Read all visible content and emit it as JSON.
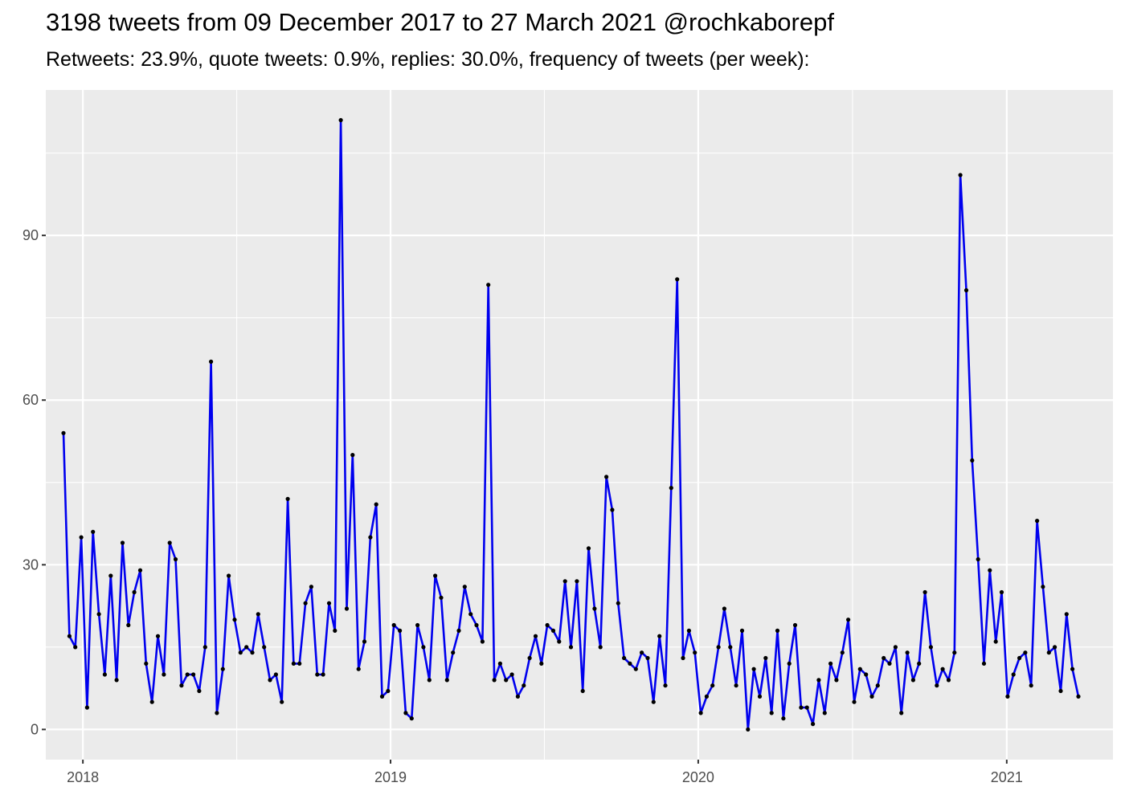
{
  "chart_data": {
    "type": "line",
    "title": "3198 tweets from 09 December 2017 to 27 March 2021 @rochkaborepf",
    "subtitle": "Retweets: 23.9%, quote tweets: 0.9%, replies: 30.0%, frequency of tweets (per week):",
    "xlabel": "",
    "ylabel": "",
    "x_axis": {
      "type": "date",
      "ticks": [
        "2018",
        "2019",
        "2020",
        "2021"
      ],
      "range": [
        "2017-11-18",
        "2021-05-07"
      ]
    },
    "y_axis": {
      "ticks": [
        0,
        30,
        60,
        90
      ],
      "range": [
        -5.5,
        116.5
      ]
    },
    "grid": true,
    "legend": "none",
    "colors": {
      "line": "#0000ee",
      "points": "#000000",
      "panel": "#ebebeb",
      "grid": "#ffffff"
    },
    "series": [
      {
        "x": [
          "2017-12-09",
          "2017-12-16",
          "2017-12-23",
          "2017-12-30",
          "2018-01-06",
          "2018-01-13",
          "2018-01-20",
          "2018-01-27",
          "2018-02-03",
          "2018-02-10",
          "2018-02-17",
          "2018-02-24",
          "2018-03-03",
          "2018-03-10",
          "2018-03-17",
          "2018-03-24",
          "2018-03-31",
          "2018-04-07",
          "2018-04-14",
          "2018-04-21",
          "2018-04-28",
          "2018-05-05",
          "2018-05-12",
          "2018-05-19",
          "2018-05-26",
          "2018-06-02",
          "2018-06-09",
          "2018-06-16",
          "2018-06-23",
          "2018-06-30",
          "2018-07-07",
          "2018-07-14",
          "2018-07-21",
          "2018-07-28",
          "2018-08-04",
          "2018-08-11",
          "2018-08-18",
          "2018-08-25",
          "2018-09-01",
          "2018-09-08",
          "2018-09-15",
          "2018-09-22",
          "2018-09-29",
          "2018-10-06",
          "2018-10-13",
          "2018-10-20",
          "2018-10-27",
          "2018-11-03",
          "2018-11-10",
          "2018-11-17",
          "2018-11-24",
          "2018-12-01",
          "2018-12-08",
          "2018-12-15",
          "2018-12-22",
          "2018-12-29",
          "2019-01-05",
          "2019-01-12",
          "2019-01-19",
          "2019-01-26",
          "2019-02-02",
          "2019-02-09",
          "2019-02-16",
          "2019-02-23",
          "2019-03-02",
          "2019-03-09",
          "2019-03-16",
          "2019-03-23",
          "2019-03-30",
          "2019-04-06",
          "2019-04-13",
          "2019-04-20",
          "2019-04-27",
          "2019-05-04",
          "2019-05-11",
          "2019-05-18",
          "2019-05-25",
          "2019-06-01",
          "2019-06-08",
          "2019-06-15",
          "2019-06-22",
          "2019-06-29",
          "2019-07-06",
          "2019-07-13",
          "2019-07-20",
          "2019-07-27",
          "2019-08-03",
          "2019-08-10",
          "2019-08-17",
          "2019-08-24",
          "2019-08-31",
          "2019-09-07",
          "2019-09-14",
          "2019-09-21",
          "2019-09-28",
          "2019-10-05",
          "2019-10-12",
          "2019-10-19",
          "2019-10-26",
          "2019-11-02",
          "2019-11-09",
          "2019-11-16",
          "2019-11-23",
          "2019-11-30",
          "2019-12-07",
          "2019-12-14",
          "2019-12-21",
          "2019-12-28",
          "2020-01-04",
          "2020-01-11",
          "2020-01-18",
          "2020-01-25",
          "2020-02-01",
          "2020-02-08",
          "2020-02-15",
          "2020-02-22",
          "2020-02-29",
          "2020-03-07",
          "2020-03-14",
          "2020-03-21",
          "2020-03-28",
          "2020-04-04",
          "2020-04-11",
          "2020-04-18",
          "2020-04-25",
          "2020-05-02",
          "2020-05-09",
          "2020-05-16",
          "2020-05-23",
          "2020-05-30",
          "2020-06-06",
          "2020-06-13",
          "2020-06-20",
          "2020-06-27",
          "2020-07-04",
          "2020-07-11",
          "2020-07-18",
          "2020-07-25",
          "2020-08-01",
          "2020-08-08",
          "2020-08-15",
          "2020-08-22",
          "2020-08-29",
          "2020-09-05",
          "2020-09-12",
          "2020-09-19",
          "2020-09-26",
          "2020-10-03",
          "2020-10-10",
          "2020-10-17",
          "2020-10-24",
          "2020-10-31",
          "2020-11-07",
          "2020-11-14",
          "2020-11-21",
          "2020-11-28",
          "2020-12-05",
          "2020-12-12",
          "2020-12-19",
          "2020-12-26",
          "2021-01-02",
          "2021-01-09",
          "2021-01-16",
          "2021-01-23",
          "2021-01-30",
          "2021-02-06",
          "2021-02-13",
          "2021-02-20",
          "2021-02-27",
          "2021-03-06",
          "2021-03-13",
          "2021-03-20",
          "2021-03-27"
        ],
        "y": [
          54,
          17,
          15,
          35,
          4,
          36,
          21,
          10,
          28,
          9,
          34,
          19,
          25,
          29,
          12,
          5,
          17,
          10,
          34,
          31,
          8,
          10,
          10,
          7,
          15,
          67,
          3,
          11,
          28,
          20,
          14,
          15,
          14,
          21,
          15,
          9,
          10,
          5,
          42,
          12,
          12,
          23,
          26,
          10,
          10,
          23,
          18,
          111,
          22,
          50,
          11,
          16,
          35,
          41,
          6,
          7,
          19,
          18,
          3,
          2,
          19,
          15,
          9,
          28,
          24,
          9,
          14,
          18,
          26,
          21,
          19,
          16,
          81,
          9,
          12,
          9,
          10,
          6,
          8,
          13,
          17,
          12,
          19,
          18,
          16,
          27,
          15,
          27,
          7,
          33,
          22,
          15,
          46,
          40,
          23,
          13,
          12,
          11,
          14,
          13,
          5,
          17,
          8,
          44,
          82,
          13,
          18,
          14,
          3,
          6,
          8,
          15,
          22,
          15,
          8,
          18,
          0,
          11,
          6,
          13,
          3,
          18,
          2,
          12,
          19,
          4,
          4,
          1,
          9,
          3,
          12,
          9,
          14,
          20,
          5,
          11,
          10,
          6,
          8,
          13,
          12,
          15,
          3,
          14,
          9,
          12,
          25,
          15,
          8,
          11,
          9,
          14,
          101,
          80,
          49,
          31,
          12,
          29,
          16,
          25,
          6,
          10,
          13,
          14,
          8,
          38,
          26,
          14,
          15,
          7,
          21,
          11,
          6
        ]
      }
    ]
  }
}
